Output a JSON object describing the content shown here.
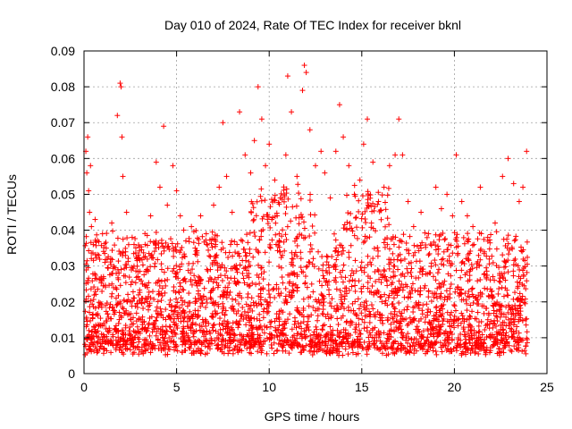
{
  "chart_data": {
    "type": "scatter",
    "title": "Day 010 of 2024, Rate Of TEC Index for receiver bknl",
    "xlabel": "GPS time / hours",
    "ylabel": "ROTI / TECUs",
    "xlim": [
      0,
      25
    ],
    "ylim": [
      0,
      0.09
    ],
    "x_ticks": [
      "0",
      "5",
      "10",
      "15",
      "20",
      "25"
    ],
    "y_ticks": [
      "0",
      "0.01",
      "0.02",
      "0.03",
      "0.04",
      "0.05",
      "0.06",
      "0.07",
      "0.08",
      "0.09"
    ],
    "grid": true,
    "marker": "plus",
    "color": "#ff0000",
    "points_summary": "Dense cloud of several thousand points spanning 0-24 h; bulk between ~0.005 and ~0.035 TECU/s",
    "series": [
      {
        "x": [
          0.1,
          0.15,
          0.2,
          0.25,
          0.3,
          0.35,
          0.4,
          0.5,
          0.6,
          0.8,
          1.0,
          1.2,
          1.5,
          1.8,
          1.95,
          2.0,
          2.05,
          2.1,
          2.3,
          2.6,
          3.0,
          3.3,
          3.6,
          3.9,
          4.1,
          4.3,
          4.5,
          4.8,
          5.0,
          5.2,
          5.5,
          5.8,
          6.0,
          6.3,
          6.6,
          7.0,
          7.3,
          7.5,
          7.7,
          8.0,
          8.4,
          8.7,
          9.0,
          9.2,
          9.4,
          9.6,
          9.8,
          10.0,
          10.3,
          10.6,
          10.9,
          11.0,
          11.2,
          11.5,
          11.8,
          11.9,
          12.0,
          12.2,
          12.5,
          12.8,
          13.0,
          13.3,
          13.6,
          13.8,
          14.0,
          14.3,
          14.6,
          14.9,
          15.1,
          15.3,
          15.6,
          15.9,
          16.2,
          16.5,
          16.8,
          17.0,
          17.2,
          17.5,
          17.8,
          18.2,
          18.6,
          19.0,
          19.3,
          19.6,
          19.9,
          20.1,
          20.4,
          20.7,
          21.0,
          21.4,
          21.8,
          22.2,
          22.6,
          22.9,
          23.2,
          23.5,
          23.7,
          23.9
        ],
        "y": [
          0.062,
          0.056,
          0.066,
          0.051,
          0.045,
          0.058,
          0.041,
          0.036,
          0.043,
          0.033,
          0.039,
          0.035,
          0.042,
          0.072,
          0.081,
          0.08,
          0.066,
          0.055,
          0.045,
          0.038,
          0.032,
          0.036,
          0.044,
          0.059,
          0.052,
          0.069,
          0.047,
          0.058,
          0.051,
          0.044,
          0.037,
          0.041,
          0.035,
          0.044,
          0.039,
          0.047,
          0.052,
          0.07,
          0.055,
          0.045,
          0.073,
          0.061,
          0.056,
          0.065,
          0.08,
          0.071,
          0.058,
          0.064,
          0.054,
          0.049,
          0.061,
          0.083,
          0.073,
          0.055,
          0.079,
          0.086,
          0.084,
          0.068,
          0.058,
          0.062,
          0.056,
          0.049,
          0.062,
          0.075,
          0.066,
          0.058,
          0.05,
          0.054,
          0.064,
          0.071,
          0.059,
          0.048,
          0.052,
          0.058,
          0.061,
          0.071,
          0.061,
          0.048,
          0.041,
          0.045,
          0.039,
          0.052,
          0.046,
          0.05,
          0.044,
          0.061,
          0.048,
          0.044,
          0.041,
          0.052,
          0.038,
          0.042,
          0.055,
          0.06,
          0.053,
          0.048,
          0.052,
          0.062
        ]
      }
    ]
  }
}
